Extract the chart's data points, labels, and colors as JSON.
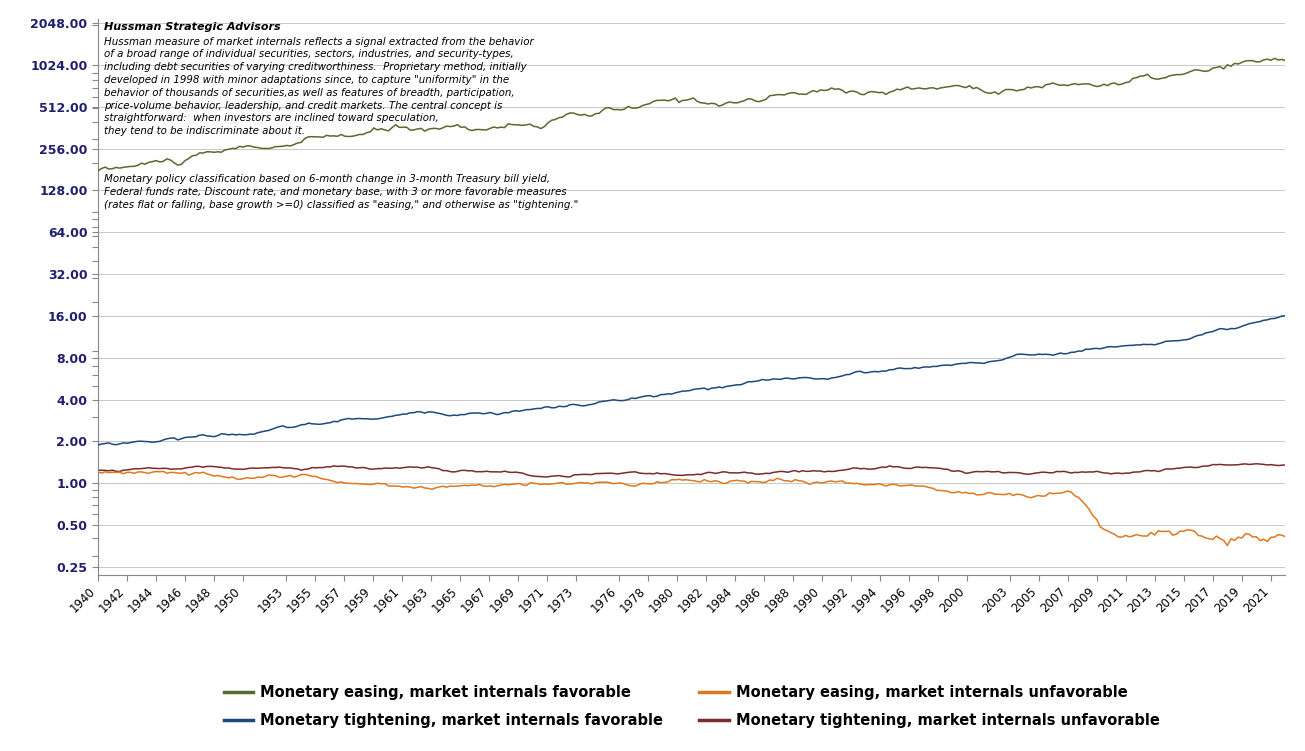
{
  "title_bold": "Hussman Strategic Advisors",
  "annotation_text1": "Hussman measure of market internals reflects a signal extracted from the behavior\nof a broad range of individual securities, sectors, industries, and security-types,\nincluding debt securities of varying creditworthiness.  Proprietary method, initially\ndeveloped in 1998 with minor adaptations since, to capture \"uniformity\" in the\nbehavior of thousands of securities,as well as features of breadth, participation,\nprice-volume behavior, leadership, and credit markets. The central concept is\nstraightforward:  when investors are inclined toward speculation,\nthey tend to be indiscriminate about it.",
  "annotation_text2": "Monetary policy classification based on 6-month change in 3-month Treasury bill yield,\nFederal funds rate, Discount rate, and monetary base, with 3 or more favorable measures\n(rates flat or falling, base growth >=0) classified as \"easing,\" and otherwise as \"tightening.\"",
  "colors": {
    "easing_favorable": "#556B2F",
    "tightening_favorable": "#1F497D",
    "easing_unfavorable": "#E07820",
    "tightening_unfavorable": "#7B2C2C"
  },
  "legend": [
    "Monetary easing, market internals favorable",
    "Monetary tightening, market internals favorable",
    "Monetary easing, market internals unfavorable",
    "Monetary tightening, market internals unfavorable"
  ],
  "yticks": [
    2048.0,
    1024.0,
    512.0,
    256.0,
    128.0,
    64.0,
    32.0,
    16.0,
    8.0,
    4.0,
    2.0,
    1.0,
    0.5,
    0.25
  ],
  "ytick_labels": [
    "2048.00",
    "1024.00",
    "512.00",
    "256.00",
    "128.00",
    "64.00",
    "32.00",
    "16.00",
    "8.00",
    "4.00",
    "2.00",
    "1.00",
    "0.50",
    "0.25"
  ],
  "ylim": [
    0.22,
    2200
  ],
  "xlim": [
    1940,
    2022
  ],
  "xticks": [
    1940,
    1942,
    1944,
    1946,
    1948,
    1950,
    1953,
    1955,
    1957,
    1959,
    1961,
    1963,
    1965,
    1967,
    1969,
    1971,
    1973,
    1976,
    1978,
    1980,
    1982,
    1984,
    1986,
    1988,
    1990,
    1992,
    1994,
    1996,
    1998,
    2000,
    2003,
    2005,
    2007,
    2009,
    2011,
    2013,
    2015,
    2017,
    2019,
    2021
  ],
  "background_color": "#ffffff"
}
